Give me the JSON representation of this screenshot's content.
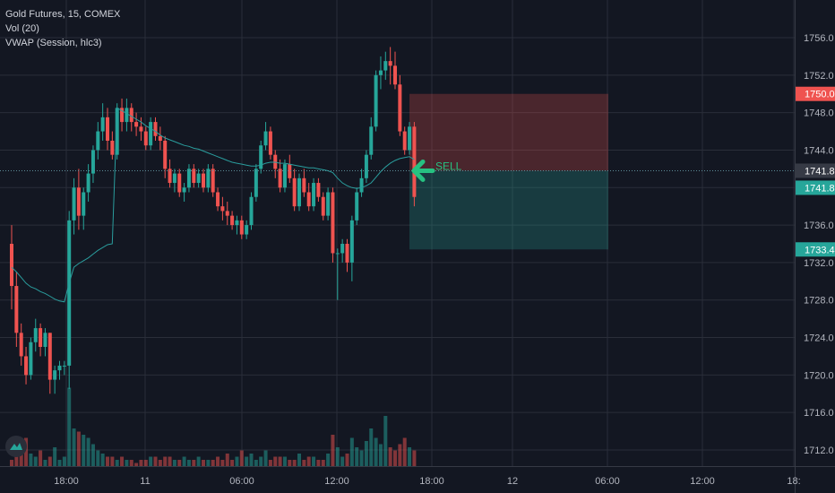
{
  "header": {
    "symbol_line": "Gold Futures, 15, COMEX",
    "volume_line": "Vol (20)",
    "vwap_line": "VWAP (Session, hlc3)"
  },
  "icons": {
    "logo": "tradingview-logo-icon"
  },
  "colors": {
    "background": "#131722",
    "bull": "#26a69a",
    "bear": "#ef5350",
    "vwap": "#2a9d9d",
    "grid": "#2a2e39",
    "signal": "#26c281"
  },
  "chart_data": {
    "type": "candlestick",
    "title": "Gold Futures, 15, COMEX",
    "ylim": [
      1710,
      1758
    ],
    "y_ticks": [
      1712,
      1716,
      1720,
      1724,
      1728,
      1732,
      1736,
      1740,
      1744,
      1748,
      1752,
      1756
    ],
    "y_tick_labels": [
      "1712.0",
      "1716.0",
      "1720.0",
      "1724.0",
      "1728.0",
      "1732.0",
      "1736.0",
      "1740.0",
      "1744.0",
      "1748.0",
      "1752.0",
      "1756.0"
    ],
    "x_tick_labels": [
      "18:00",
      "11",
      "06:00",
      "12:00",
      "18:00",
      "12",
      "06:00",
      "12:00",
      "18:"
    ],
    "grid": true,
    "candles": [
      [
        1734.0,
        1736.0,
        1727.0,
        1729.5
      ],
      [
        1729.5,
        1731.0,
        1723.0,
        1724.5
      ],
      [
        1724.5,
        1725.5,
        1721.0,
        1722.0
      ],
      [
        1722.0,
        1723.0,
        1719.0,
        1720.0
      ],
      [
        1720.0,
        1724.0,
        1719.5,
        1723.5
      ],
      [
        1723.5,
        1726.0,
        1722.5,
        1725.0
      ],
      [
        1725.0,
        1725.5,
        1722.0,
        1723.0
      ],
      [
        1723.0,
        1725.0,
        1722.0,
        1724.5
      ],
      [
        1724.5,
        1724.5,
        1718.0,
        1719.5
      ],
      [
        1719.5,
        1721.0,
        1718.0,
        1720.5
      ],
      [
        1720.5,
        1721.5,
        1719.5,
        1721.0
      ],
      [
        1721.0,
        1721.5,
        1720.0,
        1721.0
      ],
      [
        1721.0,
        1737.5,
        1718.5,
        1736.5
      ],
      [
        1736.5,
        1741.0,
        1735.0,
        1740.0
      ],
      [
        1740.0,
        1742.0,
        1735.5,
        1737.0
      ],
      [
        1737.0,
        1740.0,
        1735.5,
        1739.5
      ],
      [
        1739.5,
        1742.5,
        1738.5,
        1741.5
      ],
      [
        1741.5,
        1744.5,
        1740.5,
        1744.0
      ],
      [
        1744.0,
        1747.0,
        1743.0,
        1746.0
      ],
      [
        1746.0,
        1749.0,
        1745.0,
        1747.5
      ],
      [
        1747.5,
        1748.5,
        1744.0,
        1745.0
      ],
      [
        1745.0,
        1746.0,
        1743.0,
        1743.5
      ],
      [
        1743.5,
        1749.0,
        1743.0,
        1748.5
      ],
      [
        1748.5,
        1749.5,
        1746.0,
        1747.0
      ],
      [
        1747.0,
        1749.5,
        1746.0,
        1748.5
      ],
      [
        1748.5,
        1749.0,
        1746.0,
        1747.0
      ],
      [
        1747.0,
        1748.0,
        1745.5,
        1746.5
      ],
      [
        1746.5,
        1747.5,
        1745.0,
        1746.0
      ],
      [
        1746.0,
        1746.5,
        1744.0,
        1744.5
      ],
      [
        1744.5,
        1747.5,
        1744.0,
        1747.0
      ],
      [
        1747.0,
        1747.5,
        1745.0,
        1745.5
      ],
      [
        1745.5,
        1746.5,
        1744.0,
        1745.0
      ],
      [
        1745.0,
        1745.5,
        1741.0,
        1742.0
      ],
      [
        1742.0,
        1743.0,
        1740.0,
        1740.5
      ],
      [
        1740.5,
        1742.0,
        1739.5,
        1741.5
      ],
      [
        1741.5,
        1742.0,
        1739.0,
        1739.5
      ],
      [
        1739.5,
        1740.5,
        1738.5,
        1740.0
      ],
      [
        1740.0,
        1742.5,
        1739.5,
        1742.0
      ],
      [
        1742.0,
        1742.5,
        1740.0,
        1740.5
      ],
      [
        1740.5,
        1742.0,
        1740.0,
        1741.5
      ],
      [
        1741.5,
        1742.0,
        1739.5,
        1740.0
      ],
      [
        1740.0,
        1742.5,
        1739.5,
        1742.0
      ],
      [
        1742.0,
        1742.5,
        1739.0,
        1739.5
      ],
      [
        1739.5,
        1740.0,
        1737.5,
        1738.0
      ],
      [
        1738.0,
        1739.0,
        1736.5,
        1737.5
      ],
      [
        1737.5,
        1738.5,
        1736.0,
        1737.0
      ],
      [
        1737.0,
        1737.5,
        1735.5,
        1736.0
      ],
      [
        1736.0,
        1737.0,
        1735.0,
        1736.5
      ],
      [
        1736.5,
        1737.0,
        1734.5,
        1735.0
      ],
      [
        1735.0,
        1736.5,
        1734.5,
        1736.0
      ],
      [
        1736.0,
        1739.5,
        1735.5,
        1739.0
      ],
      [
        1739.0,
        1742.5,
        1738.5,
        1742.0
      ],
      [
        1742.0,
        1745.0,
        1741.5,
        1744.5
      ],
      [
        1744.5,
        1747.0,
        1744.0,
        1746.0
      ],
      [
        1746.0,
        1746.5,
        1743.0,
        1743.5
      ],
      [
        1743.5,
        1744.0,
        1741.0,
        1742.0
      ],
      [
        1742.0,
        1743.0,
        1739.5,
        1740.0
      ],
      [
        1740.0,
        1743.0,
        1739.5,
        1742.5
      ],
      [
        1742.5,
        1743.5,
        1740.5,
        1741.0
      ],
      [
        1741.0,
        1742.0,
        1737.5,
        1738.0
      ],
      [
        1738.0,
        1741.5,
        1737.5,
        1741.0
      ],
      [
        1741.0,
        1742.0,
        1739.0,
        1739.5
      ],
      [
        1739.5,
        1740.5,
        1737.5,
        1738.0
      ],
      [
        1738.0,
        1741.0,
        1737.5,
        1740.5
      ],
      [
        1740.5,
        1741.0,
        1738.5,
        1739.0
      ],
      [
        1739.0,
        1739.5,
        1736.5,
        1737.0
      ],
      [
        1737.0,
        1740.0,
        1736.5,
        1739.5
      ],
      [
        1739.5,
        1740.0,
        1732.0,
        1733.0
      ],
      [
        1733.0,
        1733.5,
        1728.0,
        1733.0
      ],
      [
        1733.0,
        1734.5,
        1732.0,
        1734.0
      ],
      [
        1734.0,
        1734.5,
        1731.0,
        1732.0
      ],
      [
        1732.0,
        1737.0,
        1730.0,
        1736.5
      ],
      [
        1736.5,
        1740.0,
        1736.0,
        1739.5
      ],
      [
        1739.5,
        1742.0,
        1739.0,
        1741.0
      ],
      [
        1741.0,
        1744.0,
        1740.5,
        1743.5
      ],
      [
        1743.5,
        1747.5,
        1743.0,
        1746.5
      ],
      [
        1746.5,
        1752.5,
        1746.0,
        1752.0
      ],
      [
        1752.0,
        1754.0,
        1750.5,
        1752.5
      ],
      [
        1752.5,
        1754.5,
        1751.5,
        1753.5
      ],
      [
        1753.5,
        1755.0,
        1751.0,
        1753.0
      ],
      [
        1753.0,
        1754.5,
        1750.5,
        1751.0
      ],
      [
        1751.0,
        1752.0,
        1745.5,
        1746.0
      ],
      [
        1746.0,
        1746.5,
        1743.5,
        1744.0
      ],
      [
        1744.0,
        1747.0,
        1743.5,
        1746.5
      ],
      [
        1746.5,
        1747.0,
        1738.0,
        1739.0
      ]
    ],
    "volume": [
      2,
      3,
      6,
      9,
      4,
      3,
      5,
      2,
      3,
      6,
      2,
      3,
      25,
      12,
      11,
      10,
      9,
      7,
      5,
      4,
      3,
      3,
      2,
      3,
      2,
      2,
      1,
      2,
      2,
      3,
      3,
      2,
      3,
      3,
      2,
      2,
      3,
      2,
      2,
      3,
      2,
      2,
      2,
      3,
      2,
      4,
      2,
      3,
      5,
      3,
      4,
      2,
      3,
      5,
      2,
      3,
      3,
      3,
      2,
      2,
      4,
      2,
      3,
      3,
      2,
      2,
      4,
      10,
      6,
      3,
      4,
      9,
      6,
      5,
      8,
      12,
      9,
      7,
      16,
      6,
      5,
      7,
      9,
      6,
      5
    ],
    "vwap": [
      1731.5,
      1731.0,
      1730.4,
      1729.8,
      1729.4,
      1729.2,
      1728.9,
      1728.7,
      1728.4,
      1728.1,
      1727.9,
      1727.8,
      1729.8,
      1731.5,
      1731.9,
      1732.2,
      1732.5,
      1732.9,
      1733.3,
      1733.6,
      1733.9,
      1734.0,
      1748.5,
      1748.2,
      1747.9,
      1747.6,
      1747.3,
      1747.0,
      1746.6,
      1746.3,
      1746.0,
      1745.6,
      1745.3,
      1745.1,
      1744.9,
      1744.7,
      1744.5,
      1744.4,
      1744.2,
      1744.1,
      1743.9,
      1743.7,
      1743.5,
      1743.3,
      1743.1,
      1742.9,
      1742.7,
      1742.6,
      1742.5,
      1742.4,
      1742.3,
      1742.3,
      1742.4,
      1742.6,
      1742.7,
      1742.7,
      1742.6,
      1742.6,
      1742.5,
      1742.4,
      1742.3,
      1742.2,
      1742.1,
      1742.1,
      1742.0,
      1741.9,
      1741.8,
      1741.6,
      1741.0,
      1740.5,
      1740.2,
      1740.0,
      1739.9,
      1740.0,
      1740.2,
      1740.5,
      1741.1,
      1741.7,
      1742.2,
      1742.6,
      1742.9,
      1743.1,
      1743.2,
      1743.3,
      1743.0
    ],
    "position": {
      "label": "SELL",
      "entry": 1741.8,
      "stop": 1750.0,
      "target": 1733.4,
      "current": 1741.8
    },
    "price_labels": {
      "stop": "1750.0",
      "current_1": "1741.8",
      "current_2": "1741.8",
      "target": "1733.4"
    }
  }
}
